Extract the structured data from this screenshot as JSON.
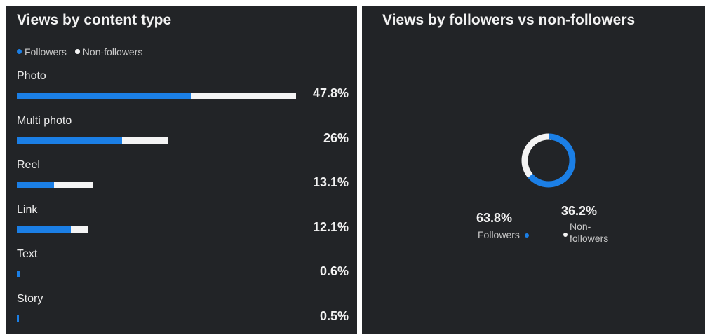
{
  "colors": {
    "followers": "#1b7fe6",
    "non_followers": "#f4f4f4",
    "panel_bg": "#222427"
  },
  "left_panel": {
    "title": "Views by content type"
  },
  "right_panel": {
    "title": "Views by followers vs non-followers"
  },
  "legend": [
    {
      "label": "Followers",
      "color": "#1b7fe6"
    },
    {
      "label": "Non-followers",
      "color": "#f4f4f4"
    }
  ],
  "chart_data": [
    {
      "type": "bar",
      "title": "Views by content type",
      "categories": [
        "Photo",
        "Multi photo",
        "Reel",
        "Link",
        "Text",
        "Story"
      ],
      "totals": [
        "47.8%",
        "26%",
        "13.1%",
        "12.1%",
        "0.6%",
        "0.5%"
      ],
      "total_values": [
        47.8,
        26,
        13.1,
        12.1,
        0.6,
        0.5
      ],
      "series": [
        {
          "name": "Followers",
          "values": [
            29.8,
            18.0,
            6.4,
            9.2,
            0.5,
            0.4
          ]
        },
        {
          "name": "Non-followers",
          "values": [
            18.0,
            8.0,
            6.7,
            2.9,
            0.1,
            0.1
          ]
        }
      ]
    },
    {
      "type": "pie",
      "title": "Views by followers vs non-followers",
      "series": [
        {
          "name": "Followers",
          "value": 63.8,
          "label": "63.8%",
          "caption": "Followers"
        },
        {
          "name": "Non-followers",
          "value": 36.2,
          "label": "36.2%",
          "caption": "Non- followers"
        }
      ]
    }
  ]
}
